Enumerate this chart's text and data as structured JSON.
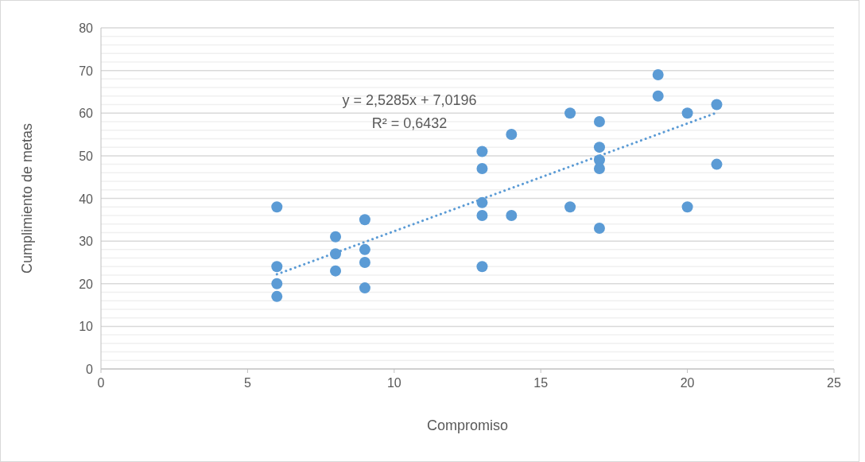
{
  "chart_data": {
    "type": "scatter",
    "xlabel": "Compromiso",
    "ylabel": "Cumplimiento de metas",
    "xlim": [
      0,
      25
    ],
    "xticks": [
      0,
      5,
      10,
      15,
      20,
      25
    ],
    "ylim": [
      0,
      80
    ],
    "yticks": [
      0,
      {
        "value": 2,
        "label": null
      },
      {
        "value": 4,
        "label": null
      },
      {
        "value": 6,
        "label": null
      },
      {
        "value": 8,
        "label": null
      },
      10,
      {
        "value": 12,
        "label": null
      },
      {
        "value": 14,
        "label": null
      },
      {
        "value": 16,
        "label": null
      },
      {
        "value": 18,
        "label": null
      },
      20,
      {
        "value": 22,
        "label": null
      },
      {
        "value": 24,
        "label": null
      },
      {
        "value": 26,
        "label": null
      },
      {
        "value": 28,
        "label": null
      },
      30,
      {
        "value": 32,
        "label": null
      },
      {
        "value": 34,
        "label": null
      },
      {
        "value": 36,
        "label": null
      },
      {
        "value": 38,
        "label": null
      },
      40,
      {
        "value": 42,
        "label": null
      },
      {
        "value": 44,
        "label": null
      },
      {
        "value": 46,
        "label": null
      },
      {
        "value": 48,
        "label": null
      },
      50,
      {
        "value": 52,
        "label": null
      },
      {
        "value": 54,
        "label": null
      },
      {
        "value": 56,
        "label": null
      },
      {
        "value": 58,
        "label": null
      },
      60,
      {
        "value": 62,
        "label": null
      },
      {
        "value": 64,
        "label": null
      },
      {
        "value": 66,
        "label": null
      },
      {
        "value": 68,
        "label": null
      },
      70,
      {
        "value": 72,
        "label": null
      },
      {
        "value": 74,
        "label": null
      },
      {
        "value": 76,
        "label": null
      },
      {
        "value": 78,
        "label": null
      },
      80
    ],
    "grid": "y",
    "marker": "circle",
    "series": [
      {
        "color": "#5b9bd5",
        "x": [
          6,
          6,
          6,
          6,
          8,
          8,
          8,
          9,
          9,
          9,
          9,
          13,
          13,
          13,
          13,
          13,
          14,
          14,
          16,
          16,
          17,
          17,
          17,
          17,
          17,
          19,
          19,
          20,
          20,
          21,
          21
        ],
        "values": [
          38,
          24,
          20,
          17,
          31,
          27,
          23,
          35,
          28,
          25,
          19,
          51,
          47,
          39,
          36,
          24,
          55,
          36,
          60,
          38,
          58,
          52,
          49,
          47,
          33,
          69,
          64,
          60,
          38,
          62,
          48
        ]
      },
      {
        "type": "line",
        "color": "#5b9bd5",
        "line_style": "dotted",
        "marker": "none",
        "x": [
          6,
          21
        ],
        "values": [
          22.2,
          60.1
        ]
      }
    ],
    "annotations": [
      "y = 2,5285x + 7,0196",
      "R² = 0,6432"
    ]
  }
}
